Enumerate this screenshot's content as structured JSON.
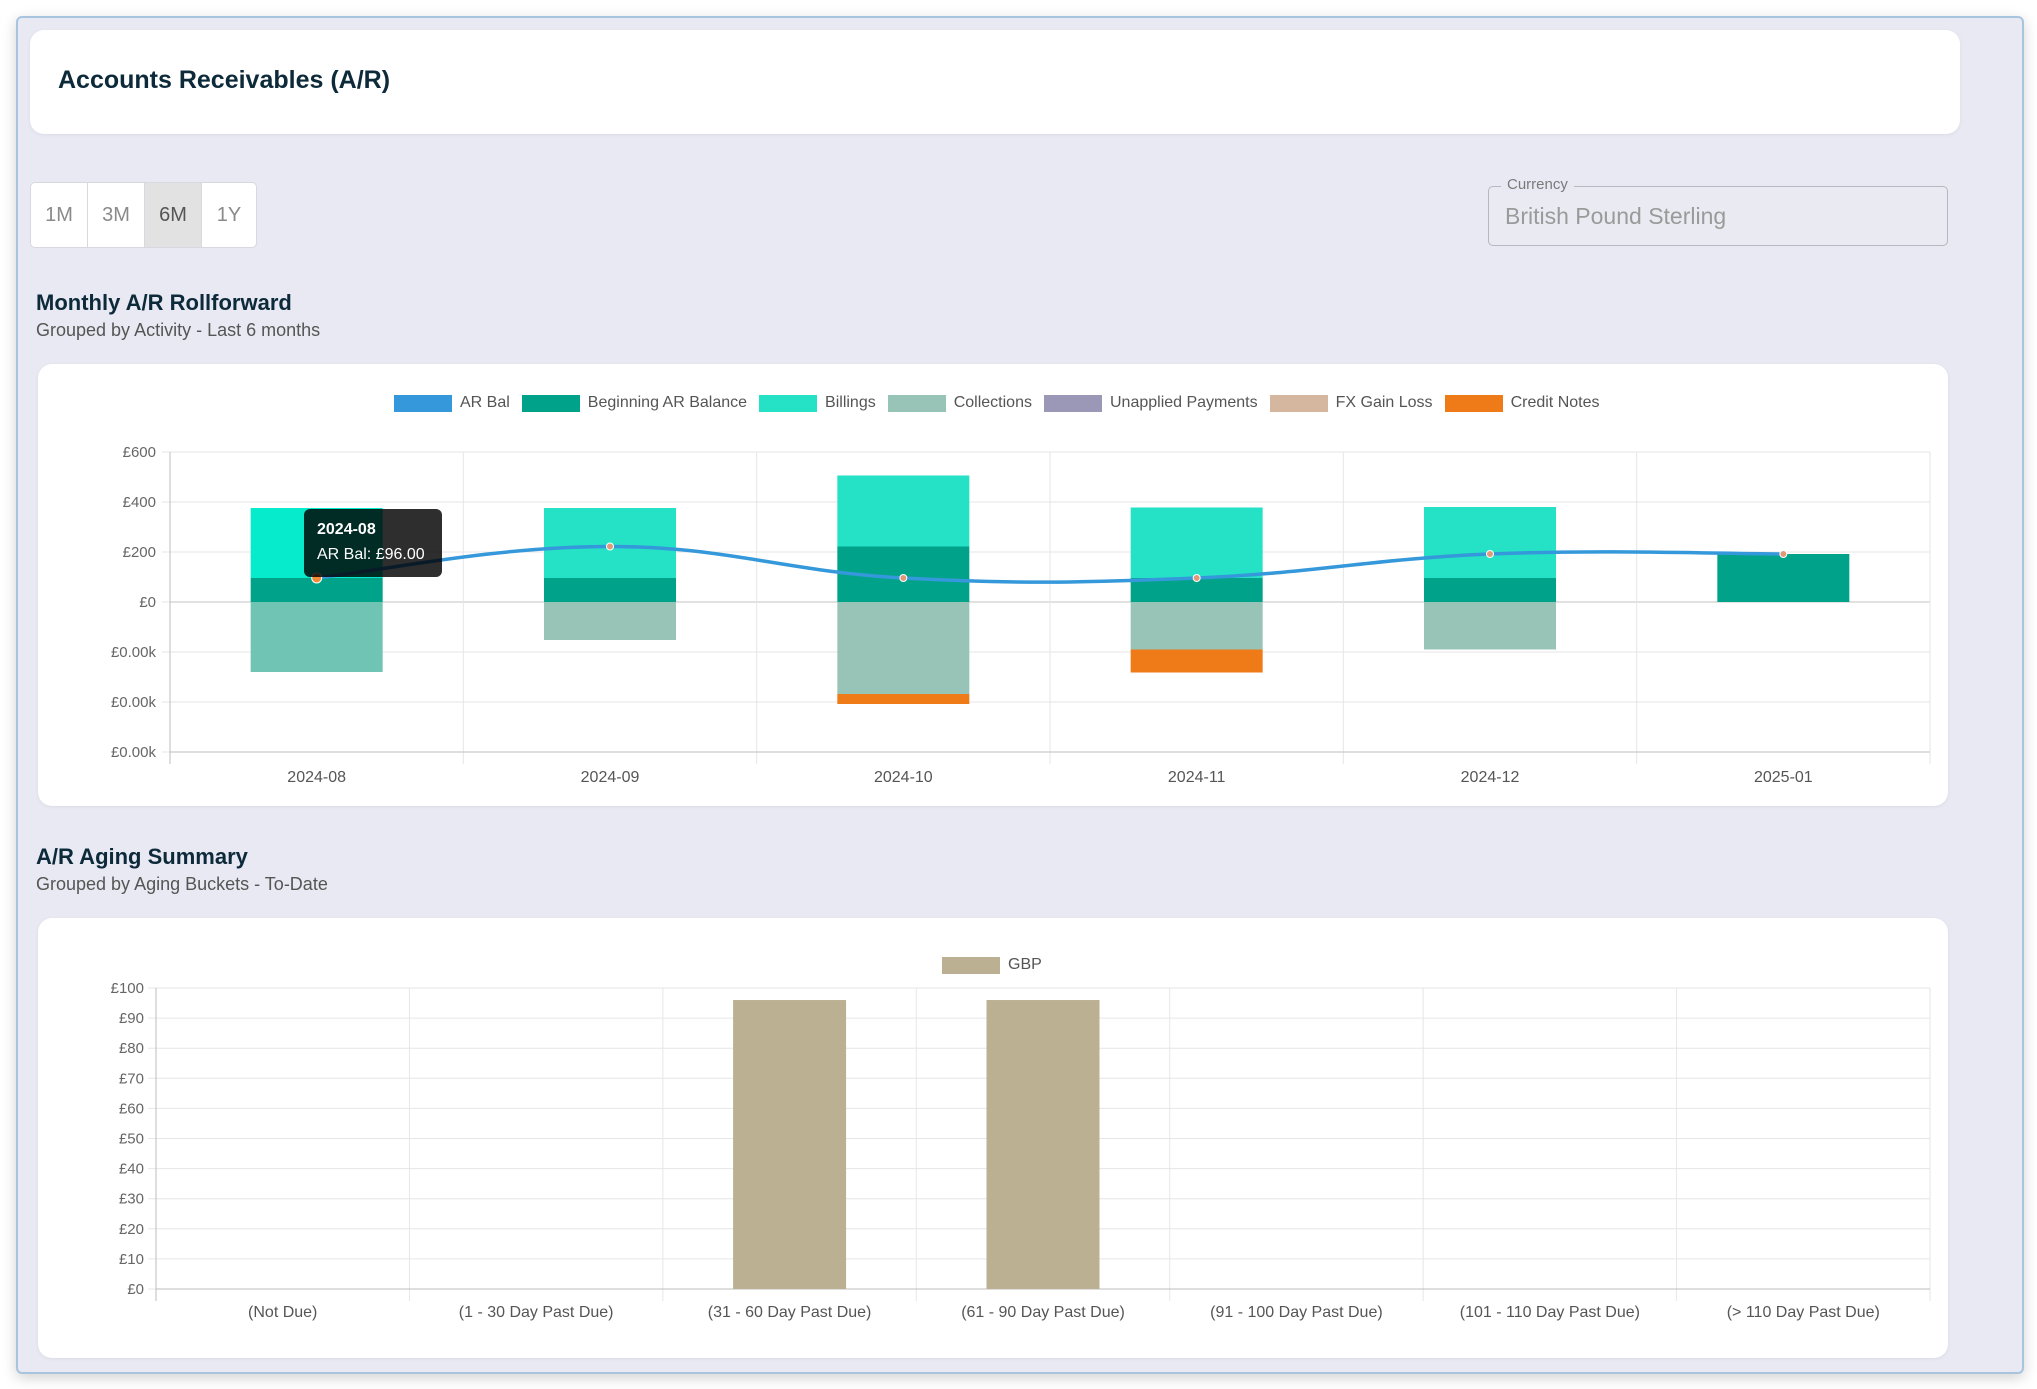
{
  "header": {
    "title": "Accounts Receivables (A/R)"
  },
  "range_buttons": [
    {
      "label": "1M",
      "active": false
    },
    {
      "label": "3M",
      "active": false
    },
    {
      "label": "6M",
      "active": true
    },
    {
      "label": "1Y",
      "active": false
    }
  ],
  "currency": {
    "label": "Currency",
    "value": "British Pound Sterling"
  },
  "rollforward": {
    "title": "Monthly A/R Rollforward",
    "subtitle": "Grouped by Activity - Last 6 months",
    "tooltip": {
      "title": "2024-08",
      "body": "AR Bal: £96.00"
    }
  },
  "aging": {
    "title": "A/R Aging Summary",
    "subtitle": "Grouped by Aging Buckets - To-Date"
  },
  "chart_data": [
    {
      "type": "bar",
      "stacked": true,
      "title": "Monthly A/R Rollforward",
      "categories": [
        "2024-08",
        "2024-09",
        "2024-10",
        "2024-11",
        "2024-12",
        "2025-01"
      ],
      "y_tick_labels": [
        "£600",
        "£400",
        "£200",
        "£0",
        "£0.00k",
        "£0.00k",
        "£0.00k"
      ],
      "ylim": [
        -600,
        600
      ],
      "legend": [
        {
          "name": "AR Bal",
          "color": "#3498db"
        },
        {
          "name": "Beginning AR Balance",
          "color": "#00a389"
        },
        {
          "name": "Billings",
          "color": "#25e2c6"
        },
        {
          "name": "Collections",
          "color": "#98c4b8"
        },
        {
          "name": "Unapplied Payments",
          "color": "#9b97b7"
        },
        {
          "name": "FX Gain Loss",
          "color": "#d5b7a0"
        },
        {
          "name": "Credit Notes",
          "color": "#ee7a18"
        }
      ],
      "series": [
        {
          "name": "Beginning AR Balance",
          "color": "#00a389",
          "values": [
            96,
            96,
            222,
            96,
            96,
            192
          ]
        },
        {
          "name": "Billings",
          "color": "#25e2c6",
          "values": [
            280,
            280,
            284,
            282,
            284,
            0
          ]
        },
        {
          "name": "Collections",
          "color": "#98c4b8",
          "values": [
            -280,
            -152,
            -368,
            -190,
            -190,
            0
          ]
        },
        {
          "name": "Credit Notes",
          "color": "#ee7a18",
          "values": [
            0,
            0,
            -40,
            -92,
            0,
            0
          ]
        }
      ],
      "line_series": {
        "name": "AR Bal",
        "color": "#3498db",
        "values": [
          96,
          222,
          96,
          96,
          192,
          192
        ]
      }
    },
    {
      "type": "bar",
      "title": "A/R Aging Summary",
      "categories": [
        "(Not Due)",
        "(1 - 30 Day Past Due)",
        "(31 - 60 Day Past Due)",
        "(61 - 90 Day Past Due)",
        "(91 - 100 Day Past Due)",
        "(101 - 110 Day Past Due)",
        "(> 110 Day Past Due)"
      ],
      "y_tick_labels": [
        "£100",
        "£90",
        "£80",
        "£70",
        "£60",
        "£50",
        "£40",
        "£30",
        "£20",
        "£10",
        "£0"
      ],
      "ylim": [
        0,
        100
      ],
      "legend": [
        {
          "name": "GBP",
          "color": "#bbb092"
        }
      ],
      "series": [
        {
          "name": "GBP",
          "color": "#bbb092",
          "values": [
            0,
            0,
            96,
            96,
            0,
            0,
            0
          ]
        }
      ]
    }
  ]
}
